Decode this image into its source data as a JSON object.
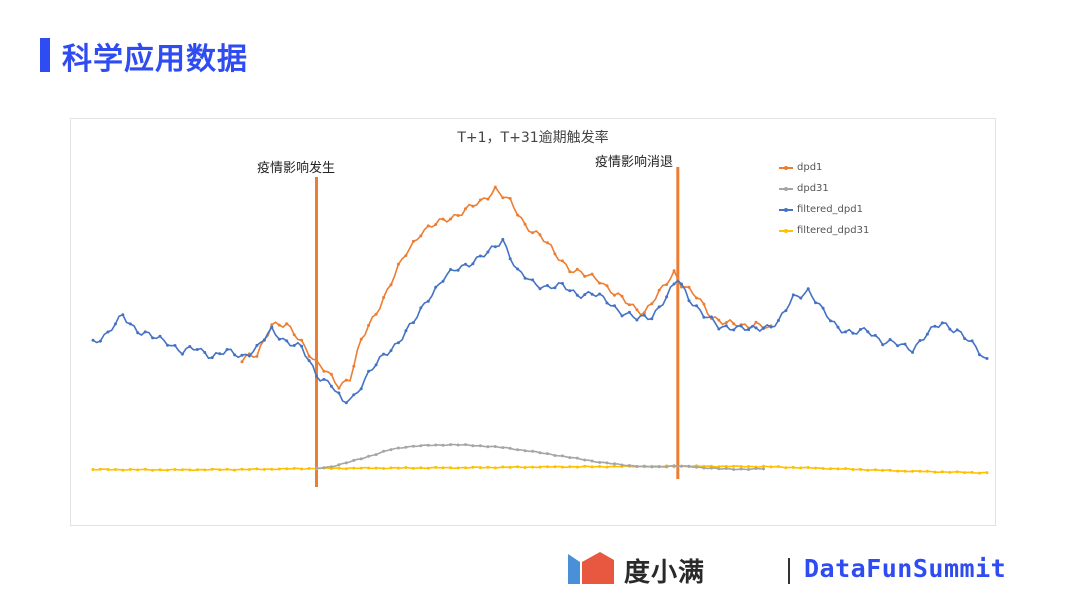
{
  "page": {
    "title": "科学应用数据"
  },
  "chart_data": {
    "type": "line",
    "title": "T+1，T+31逾期触发率",
    "xlabel": "",
    "ylabel": "",
    "grid": false,
    "legend_position": "right",
    "annotations": [
      {
        "label": "疫情影响发生",
        "x_index": 60
      },
      {
        "label": "疫情影响消退",
        "x_index": 157
      }
    ],
    "series": [
      {
        "name": "dpd1",
        "color": "#ed7d31",
        "x_start": 40,
        "x_end": 182,
        "keypoints": [
          [
            40,
            0.35
          ],
          [
            44,
            0.36
          ],
          [
            48,
            0.45
          ],
          [
            52,
            0.44
          ],
          [
            56,
            0.4
          ],
          [
            60,
            0.34
          ],
          [
            64,
            0.3
          ],
          [
            66,
            0.28
          ],
          [
            69,
            0.3
          ],
          [
            72,
            0.4
          ],
          [
            76,
            0.48
          ],
          [
            80,
            0.56
          ],
          [
            84,
            0.64
          ],
          [
            88,
            0.7
          ],
          [
            92,
            0.72
          ],
          [
            96,
            0.74
          ],
          [
            100,
            0.76
          ],
          [
            104,
            0.78
          ],
          [
            108,
            0.82
          ],
          [
            112,
            0.78
          ],
          [
            116,
            0.72
          ],
          [
            120,
            0.69
          ],
          [
            124,
            0.64
          ],
          [
            128,
            0.6
          ],
          [
            132,
            0.58
          ],
          [
            136,
            0.57
          ],
          [
            140,
            0.53
          ],
          [
            144,
            0.5
          ],
          [
            148,
            0.48
          ],
          [
            152,
            0.53
          ],
          [
            156,
            0.59
          ],
          [
            158,
            0.56
          ],
          [
            162,
            0.52
          ],
          [
            166,
            0.47
          ],
          [
            170,
            0.45
          ],
          [
            174,
            0.44
          ],
          [
            178,
            0.45
          ],
          [
            182,
            0.43
          ]
        ]
      },
      {
        "name": "dpd31",
        "color": "#a5a5a5",
        "x_start": 60,
        "x_end": 180,
        "keypoints": [
          [
            60,
            0.051
          ],
          [
            64,
            0.056
          ],
          [
            68,
            0.066
          ],
          [
            72,
            0.078
          ],
          [
            76,
            0.09
          ],
          [
            80,
            0.103
          ],
          [
            84,
            0.11
          ],
          [
            88,
            0.113
          ],
          [
            92,
            0.115
          ],
          [
            96,
            0.116
          ],
          [
            100,
            0.115
          ],
          [
            104,
            0.113
          ],
          [
            108,
            0.11
          ],
          [
            112,
            0.106
          ],
          [
            116,
            0.1
          ],
          [
            120,
            0.094
          ],
          [
            124,
            0.088
          ],
          [
            128,
            0.081
          ],
          [
            132,
            0.075
          ],
          [
            136,
            0.068
          ],
          [
            140,
            0.063
          ],
          [
            144,
            0.059
          ],
          [
            148,
            0.056
          ],
          [
            152,
            0.055
          ],
          [
            156,
            0.058
          ],
          [
            160,
            0.056
          ],
          [
            164,
            0.053
          ],
          [
            168,
            0.05
          ],
          [
            172,
            0.049
          ],
          [
            176,
            0.049
          ],
          [
            180,
            0.05
          ]
        ]
      },
      {
        "name": "filtered_dpd1",
        "color": "#4472c4",
        "x_start": 0,
        "x_end": 240,
        "keypoints": [
          [
            0,
            0.4
          ],
          [
            4,
            0.42
          ],
          [
            8,
            0.47
          ],
          [
            12,
            0.43
          ],
          [
            16,
            0.41
          ],
          [
            20,
            0.4
          ],
          [
            24,
            0.37
          ],
          [
            28,
            0.38
          ],
          [
            32,
            0.36
          ],
          [
            36,
            0.37
          ],
          [
            40,
            0.36
          ],
          [
            44,
            0.38
          ],
          [
            48,
            0.43
          ],
          [
            52,
            0.4
          ],
          [
            56,
            0.38
          ],
          [
            60,
            0.31
          ],
          [
            64,
            0.28
          ],
          [
            67,
            0.23
          ],
          [
            70,
            0.25
          ],
          [
            74,
            0.31
          ],
          [
            78,
            0.36
          ],
          [
            82,
            0.4
          ],
          [
            86,
            0.45
          ],
          [
            90,
            0.52
          ],
          [
            94,
            0.57
          ],
          [
            98,
            0.6
          ],
          [
            102,
            0.62
          ],
          [
            106,
            0.64
          ],
          [
            110,
            0.68
          ],
          [
            114,
            0.59
          ],
          [
            118,
            0.56
          ],
          [
            122,
            0.55
          ],
          [
            126,
            0.55
          ],
          [
            130,
            0.53
          ],
          [
            134,
            0.53
          ],
          [
            138,
            0.51
          ],
          [
            142,
            0.48
          ],
          [
            146,
            0.46
          ],
          [
            150,
            0.47
          ],
          [
            154,
            0.52
          ],
          [
            157,
            0.57
          ],
          [
            160,
            0.52
          ],
          [
            164,
            0.47
          ],
          [
            168,
            0.44
          ],
          [
            172,
            0.44
          ],
          [
            176,
            0.43
          ],
          [
            180,
            0.44
          ],
          [
            184,
            0.45
          ],
          [
            188,
            0.52
          ],
          [
            192,
            0.54
          ],
          [
            196,
            0.48
          ],
          [
            200,
            0.44
          ],
          [
            204,
            0.42
          ],
          [
            208,
            0.43
          ],
          [
            212,
            0.4
          ],
          [
            216,
            0.39
          ],
          [
            220,
            0.38
          ],
          [
            224,
            0.42
          ],
          [
            228,
            0.45
          ],
          [
            232,
            0.43
          ],
          [
            236,
            0.39
          ],
          [
            240,
            0.35
          ]
        ]
      },
      {
        "name": "filtered_dpd31",
        "color": "#ffc000",
        "x_start": 0,
        "x_end": 240,
        "keypoints": [
          [
            0,
            0.048
          ],
          [
            20,
            0.047
          ],
          [
            40,
            0.048
          ],
          [
            60,
            0.051
          ],
          [
            80,
            0.052
          ],
          [
            100,
            0.053
          ],
          [
            120,
            0.055
          ],
          [
            140,
            0.056
          ],
          [
            160,
            0.057
          ],
          [
            180,
            0.056
          ],
          [
            200,
            0.05
          ],
          [
            220,
            0.043
          ],
          [
            240,
            0.039
          ]
        ]
      }
    ]
  }
}
